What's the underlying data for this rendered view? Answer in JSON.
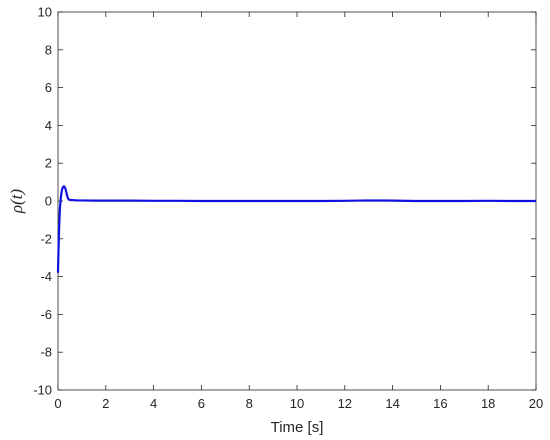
{
  "chart_data": {
    "type": "line",
    "title": "",
    "xlabel": "Time [s]",
    "ylabel": "ρ(t)",
    "xlim": [
      0,
      20
    ],
    "ylim": [
      -10,
      10
    ],
    "x_ticks": [
      0,
      2,
      4,
      6,
      8,
      10,
      12,
      14,
      16,
      18,
      20
    ],
    "y_ticks": [
      -10,
      -8,
      -6,
      -4,
      -2,
      0,
      2,
      4,
      6,
      8,
      10
    ],
    "x_tick_labels": [
      "0",
      "2",
      "4",
      "6",
      "8",
      "10",
      "12",
      "14",
      "16",
      "18",
      "20"
    ],
    "y_tick_labels": [
      "-10",
      "-8",
      "-6",
      "-4",
      "-2",
      "0",
      "2",
      "4",
      "6",
      "8",
      "10"
    ],
    "grid": false,
    "colors": {
      "line": "#1010e0",
      "axes": "#262626"
    },
    "series": [
      {
        "x": [
          0.0,
          0.02,
          0.05,
          0.08,
          0.12,
          0.16,
          0.2,
          0.25,
          0.3,
          0.35,
          0.4,
          0.45,
          0.5,
          0.6,
          0.8,
          1.0,
          1.5,
          2.0,
          3.0,
          4.0,
          5.0,
          6.0,
          7.0,
          8.0,
          9.0,
          10.0,
          11.0,
          12.0,
          13.0,
          14.0,
          15.0,
          16.0,
          17.0,
          18.0,
          19.0,
          20.0
        ],
        "y": [
          -3.8,
          -2.6,
          -1.3,
          -0.4,
          0.2,
          0.55,
          0.72,
          0.78,
          0.7,
          0.45,
          0.2,
          0.08,
          0.05,
          0.05,
          0.03,
          0.03,
          0.02,
          0.02,
          0.02,
          0.01,
          0.01,
          0.0,
          0.0,
          0.0,
          0.0,
          0.0,
          0.0,
          0.01,
          0.03,
          0.02,
          0.0,
          0.0,
          0.0,
          0.01,
          0.0,
          0.0
        ]
      }
    ]
  }
}
